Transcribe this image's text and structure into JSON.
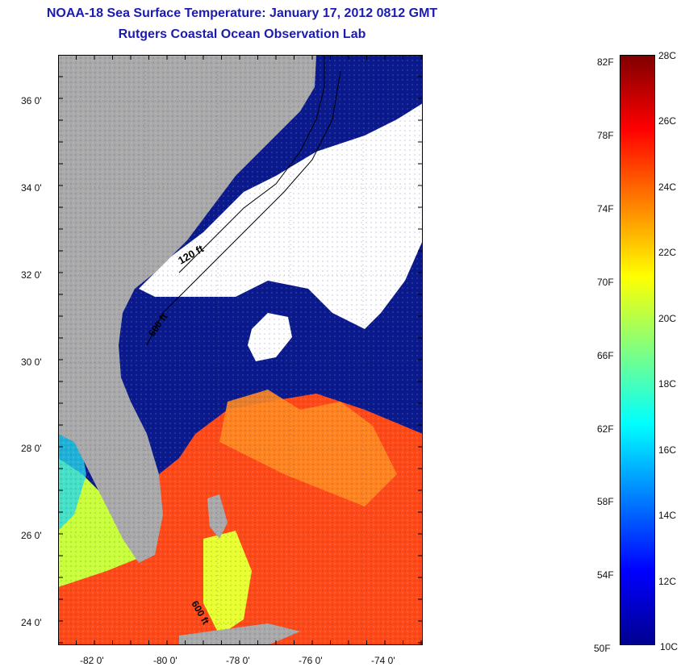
{
  "title": "NOAA-18 Sea Surface Temperature:  January 17, 2012 0812 GMT",
  "subtitle": "Rutgers Coastal Ocean Observation Lab",
  "map": {
    "lon_range": [
      -83,
      -73
    ],
    "lat_range": [
      23,
      37
    ],
    "lat_ticks": [
      "36 0'",
      "34 0'",
      "32 0'",
      "30 0'",
      "28 0'",
      "26 0'",
      "24 0'"
    ],
    "lon_ticks": [
      "-82 0'",
      "-80 0'",
      "-78 0'",
      "-76 0'",
      "-74 0'"
    ],
    "contour_labels": [
      "120 ft",
      "600 ft",
      "600 ft"
    ],
    "colors": {
      "land": "#a9a9a9",
      "cloud": "#ffffff",
      "cold_water": "#0a1a8c",
      "warm_water": "#ff3a10"
    }
  },
  "colorbar": {
    "left_labels": [
      "82F",
      "78F",
      "74F",
      "70F",
      "66F",
      "62F",
      "58F",
      "54F",
      "50F"
    ],
    "right_labels": [
      "28C",
      "26C",
      "24C",
      "22C",
      "20C",
      "18C",
      "16C",
      "14C",
      "12C",
      "10C"
    ],
    "colors": [
      "#00008f",
      "#0000ff",
      "#0080ff",
      "#00ffff",
      "#80ff80",
      "#ffff00",
      "#ff8000",
      "#ff0000",
      "#800000"
    ]
  }
}
